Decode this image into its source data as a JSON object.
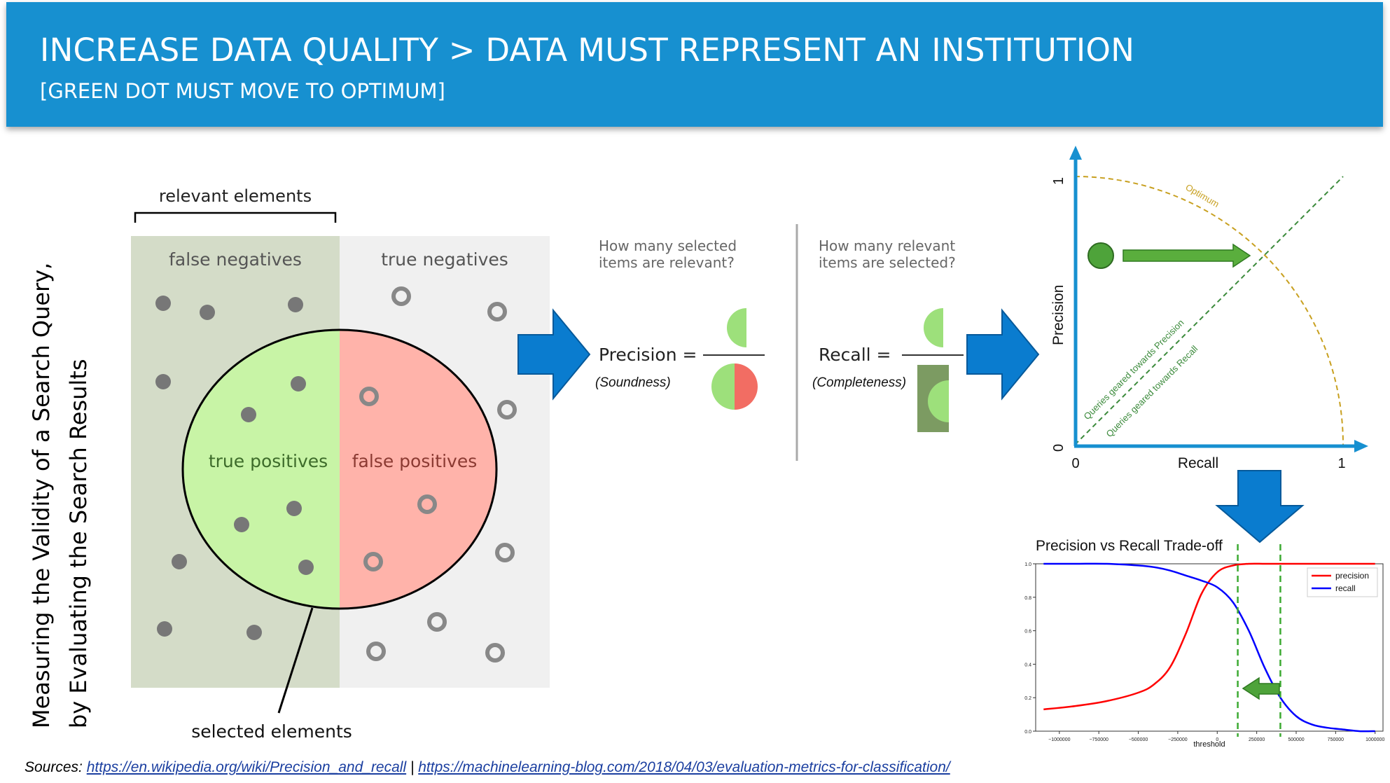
{
  "header": {
    "title": "INCREASE DATA QUALITY > DATA MUST REPRESENT AN INSTITUTION",
    "subtitle": "[GREEN DOT MUST MOVE TO OPTIMUM]"
  },
  "side_caption": {
    "line1": "Measuring the Validity of a Search Query,",
    "line2": "by Evaluating the Search Results"
  },
  "diagram": {
    "relevant_label": "relevant elements",
    "false_negatives": "false negatives",
    "true_negatives": "true negatives",
    "true_positives": "true positives",
    "false_positives": "false positives",
    "selected_label": "selected elements"
  },
  "formulas": {
    "precision_question": [
      "How many selected",
      "items are relevant?"
    ],
    "recall_question": [
      "How many relevant",
      "items are selected?"
    ],
    "precision_label": "Precision =",
    "precision_note": "(Soundness)",
    "recall_label": "Recall =",
    "recall_note": "(Completeness)"
  },
  "pr_plot": {
    "y_label": "Precision",
    "x_label": "Recall",
    "x_ticks": [
      "0",
      "1"
    ],
    "y_ticks": [
      "0",
      "1"
    ],
    "optimum_label": "Optimum",
    "line_precision_label": "Queries geared towards Precision",
    "line_recall_label": "Queries geared towards Recall",
    "colors": {
      "axis": "#1790d0",
      "dot": "#4ea33a",
      "arc": "#c8a020",
      "diag": "#3b8a3b"
    }
  },
  "chart_data": {
    "type": "line",
    "title": "Precision vs Recall Trade-off",
    "xlabel": "threshold",
    "ylabel": "",
    "xlim": [
      -1150000,
      1050000
    ],
    "ylim": [
      0,
      1.0
    ],
    "x_ticks": [
      "−1000000",
      "−750000",
      "−500000",
      "−250000",
      "0",
      "250000",
      "500000",
      "750000",
      "1000000"
    ],
    "y_ticks": [
      "0.0",
      "0.2",
      "0.4",
      "0.6",
      "0.8",
      "1.0"
    ],
    "legend_position": "top-right",
    "x": [
      -1100000,
      -900000,
      -700000,
      -500000,
      -400000,
      -300000,
      -200000,
      -100000,
      0,
      100000,
      200000,
      300000,
      400000,
      500000,
      600000,
      700000,
      800000,
      900000,
      1000000
    ],
    "series": [
      {
        "name": "precision",
        "color": "#ff0000",
        "values": [
          0.13,
          0.15,
          0.18,
          0.23,
          0.28,
          0.38,
          0.58,
          0.82,
          0.95,
          0.99,
          1.0,
          1.0,
          1.0,
          1.0,
          1.0,
          1.0,
          1.0,
          1.0,
          1.0
        ]
      },
      {
        "name": "recall",
        "color": "#0000ff",
        "values": [
          1.0,
          1.0,
          1.0,
          0.99,
          0.98,
          0.96,
          0.93,
          0.9,
          0.86,
          0.77,
          0.6,
          0.38,
          0.2,
          0.09,
          0.04,
          0.02,
          0.01,
          0.0,
          0.0
        ]
      }
    ],
    "markers": [
      {
        "x": 130000,
        "style": "dashed",
        "color": "#3caa32"
      },
      {
        "x": 400000,
        "style": "dashed",
        "color": "#3caa32"
      }
    ]
  },
  "sources": {
    "label": "Sources: ",
    "link1": "https://en.wikipedia.org/wiki/Precision_and_recall",
    "separator": " | ",
    "link2": "https://machinelearning-blog.com/2018/04/03/evaluation-metrics-for-classification/"
  }
}
